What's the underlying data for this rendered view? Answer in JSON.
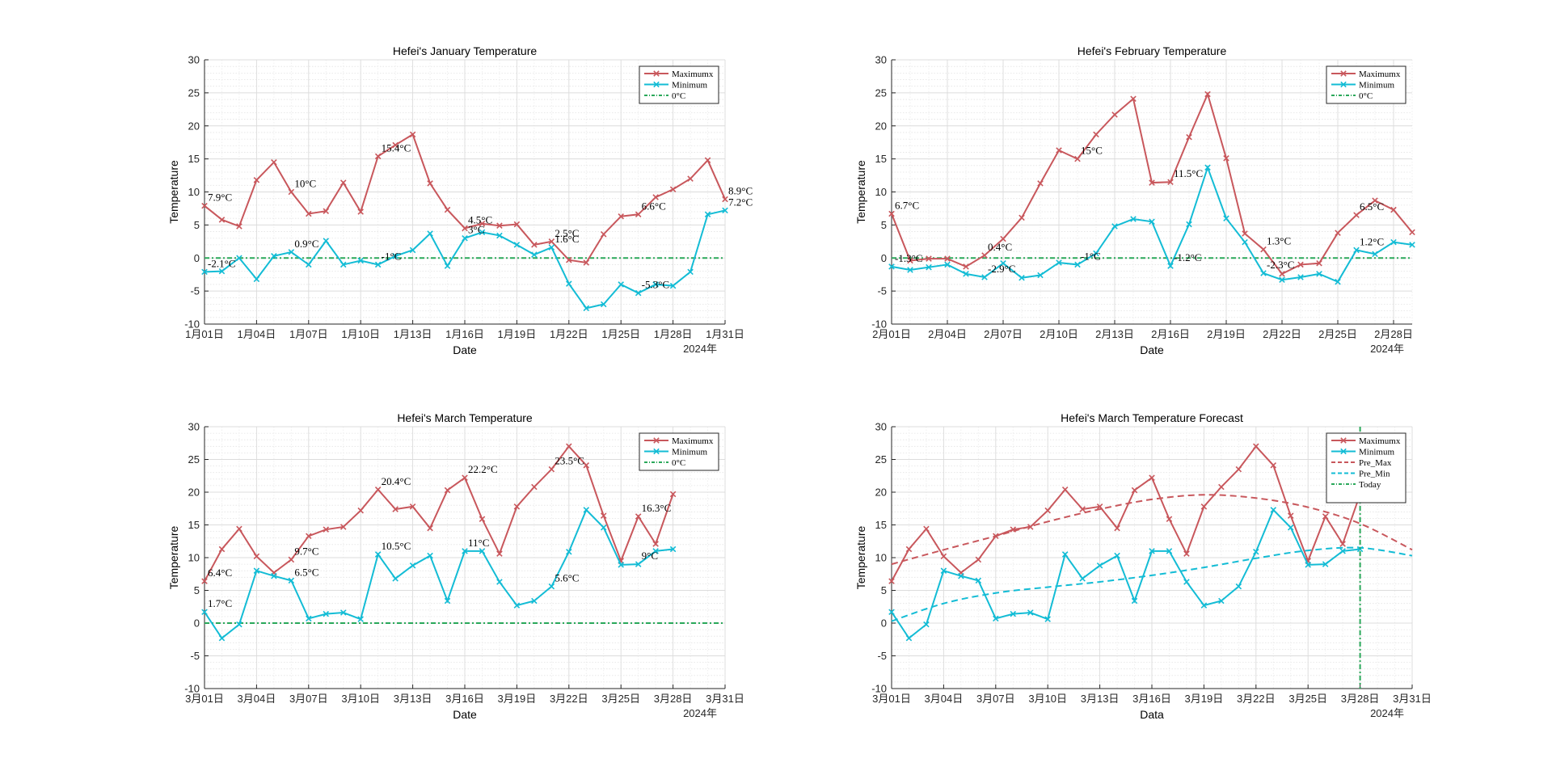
{
  "colors": {
    "max": "#c8575c",
    "min": "#13bcd5",
    "zero": "#2aa85a",
    "today": "#2aa85a"
  },
  "chart_data": [
    {
      "type": "line",
      "title": "Hefei's January Temperature",
      "xlabel": "Date",
      "ylabel": "Temperature",
      "year_label": "2024年",
      "ylim": [
        -10,
        30
      ],
      "yticks": [
        "-10",
        "-5",
        "0",
        "5",
        "10",
        "15",
        "20",
        "25",
        "30"
      ],
      "xlim": [
        1,
        31
      ],
      "xticks": [
        {
          "x": 1,
          "label": "1月01日"
        },
        {
          "x": 4,
          "label": "1月04日"
        },
        {
          "x": 7,
          "label": "1月07日"
        },
        {
          "x": 10,
          "label": "1月10日"
        },
        {
          "x": 13,
          "label": "1月13日"
        },
        {
          "x": 16,
          "label": "1月16日"
        },
        {
          "x": 19,
          "label": "1月19日"
        },
        {
          "x": 22,
          "label": "1月22日"
        },
        {
          "x": 25,
          "label": "1月25日"
        },
        {
          "x": 28,
          "label": "1月28日"
        },
        {
          "x": 31,
          "label": "1月31日"
        }
      ],
      "grid": true,
      "legend_position": "top-right",
      "legend": [
        "Maximumx",
        "Minimum",
        "0°C"
      ],
      "series": [
        {
          "name": "Maximumx",
          "x": [
            1,
            2,
            3,
            4,
            5,
            6,
            7,
            8,
            9,
            10,
            11,
            12,
            13,
            14,
            15,
            16,
            17,
            18,
            19,
            20,
            21,
            22,
            23,
            24,
            25,
            26,
            27,
            28,
            29,
            30,
            31
          ],
          "values": [
            7.9,
            5.8,
            4.8,
            11.8,
            14.5,
            10,
            6.7,
            7.1,
            11.4,
            7,
            15.4,
            17.1,
            18.7,
            11.3,
            7.3,
            4.5,
            5.2,
            4.9,
            5.1,
            2,
            2.5,
            -0.3,
            -0.7,
            3.6,
            6.3,
            6.6,
            9.2,
            10.4,
            12,
            14.8,
            8.9
          ]
        },
        {
          "name": "Minimum",
          "x": [
            1,
            2,
            3,
            4,
            5,
            6,
            7,
            8,
            9,
            10,
            11,
            12,
            13,
            14,
            15,
            16,
            17,
            18,
            19,
            20,
            21,
            22,
            23,
            24,
            25,
            26,
            27,
            28,
            29,
            30,
            31
          ],
          "values": [
            -2.1,
            -2,
            0,
            -3.2,
            0.3,
            0.9,
            -1,
            2.6,
            -1,
            -0.4,
            -1,
            0.3,
            1.2,
            3.7,
            -1.2,
            3,
            3.9,
            3.4,
            2,
            0.5,
            1.6,
            -3.9,
            -7.6,
            -7,
            -4,
            -5.3,
            -4,
            -4.2,
            -2.1,
            6.6,
            7.2
          ]
        }
      ],
      "annotations": [
        {
          "x": 1,
          "y": 7.9,
          "text": "7.9°C"
        },
        {
          "x": 6,
          "y": 10,
          "text": "10°C"
        },
        {
          "x": 11,
          "y": 15.4,
          "text": "15.4°C"
        },
        {
          "x": 16,
          "y": 4.5,
          "text": "4.5°C"
        },
        {
          "x": 21,
          "y": 2.5,
          "text": "2.5°C"
        },
        {
          "x": 26,
          "y": 6.6,
          "text": "6.6°C"
        },
        {
          "x": 31,
          "y": 8.9,
          "text": "8.9°C"
        },
        {
          "x": 1,
          "y": -2.1,
          "text": "-2.1°C"
        },
        {
          "x": 6,
          "y": 0.9,
          "text": "0.9°C"
        },
        {
          "x": 11,
          "y": -1,
          "text": "-1°C"
        },
        {
          "x": 16,
          "y": 3,
          "text": "3°C"
        },
        {
          "x": 21,
          "y": 1.6,
          "text": "1.6°C"
        },
        {
          "x": 26,
          "y": -5.3,
          "text": "-5.3°C"
        },
        {
          "x": 31,
          "y": 7.2,
          "text": "7.2°C"
        }
      ]
    },
    {
      "type": "line",
      "title": "Hefei's February Temperature",
      "xlabel": "Date",
      "ylabel": "Temperature",
      "year_label": "2024年",
      "ylim": [
        -10,
        30
      ],
      "yticks": [
        "-10",
        "-5",
        "0",
        "5",
        "10",
        "15",
        "20",
        "25",
        "30"
      ],
      "xlim": [
        1,
        29
      ],
      "xticks": [
        {
          "x": 1,
          "label": "2月01日"
        },
        {
          "x": 4,
          "label": "2月04日"
        },
        {
          "x": 7,
          "label": "2月07日"
        },
        {
          "x": 10,
          "label": "2月10日"
        },
        {
          "x": 13,
          "label": "2月13日"
        },
        {
          "x": 16,
          "label": "2月16日"
        },
        {
          "x": 19,
          "label": "2月19日"
        },
        {
          "x": 22,
          "label": "2月22日"
        },
        {
          "x": 25,
          "label": "2月25日"
        },
        {
          "x": 28,
          "label": "2月28日"
        }
      ],
      "grid": true,
      "legend_position": "top-right",
      "legend": [
        "Maximumx",
        "Minimum",
        "0°C"
      ],
      "series": [
        {
          "name": "Maximumx",
          "x": [
            1,
            2,
            3,
            4,
            5,
            6,
            7,
            8,
            9,
            10,
            11,
            12,
            13,
            14,
            15,
            16,
            17,
            18,
            19,
            20,
            21,
            22,
            23,
            24,
            25,
            26,
            27,
            28,
            29
          ],
          "values": [
            6.7,
            -0.4,
            -0.1,
            -0.1,
            -1.3,
            0.4,
            2.9,
            6.1,
            11.3,
            16.3,
            15,
            18.7,
            21.7,
            24.1,
            11.4,
            11.5,
            18.3,
            24.8,
            15.1,
            3.7,
            1.3,
            -2.4,
            -1,
            -0.8,
            3.8,
            6.5,
            8.7,
            7.3,
            3.9
          ]
        },
        {
          "name": "Minimum",
          "x": [
            1,
            2,
            3,
            4,
            5,
            6,
            7,
            8,
            9,
            10,
            11,
            12,
            13,
            14,
            15,
            16,
            17,
            18,
            19,
            20,
            21,
            22,
            23,
            24,
            25,
            26,
            27,
            28,
            29
          ],
          "values": [
            -1.3,
            -1.8,
            -1.4,
            -1,
            -2.4,
            -2.9,
            -0.8,
            -3,
            -2.6,
            -0.7,
            -1,
            0.7,
            4.8,
            5.9,
            5.5,
            -1.2,
            5.1,
            13.7,
            6,
            2.4,
            -2.3,
            -3.3,
            -2.9,
            -2.4,
            -3.6,
            1.2,
            0.6,
            2.4,
            2
          ]
        }
      ],
      "annotations": [
        {
          "x": 1,
          "y": 6.7,
          "text": "6.7°C"
        },
        {
          "x": 6,
          "y": 0.4,
          "text": "0.4°C"
        },
        {
          "x": 11,
          "y": 15,
          "text": "15°C"
        },
        {
          "x": 16,
          "y": 11.5,
          "text": "11.5°C"
        },
        {
          "x": 21,
          "y": 1.3,
          "text": "1.3°C"
        },
        {
          "x": 26,
          "y": 6.5,
          "text": "6.5°C"
        },
        {
          "x": 1,
          "y": -1.3,
          "text": "-1.3°C"
        },
        {
          "x": 6,
          "y": -2.9,
          "text": "-2.9°C"
        },
        {
          "x": 11,
          "y": -1,
          "text": "-1°C"
        },
        {
          "x": 16,
          "y": -1.2,
          "text": "-1.2°C"
        },
        {
          "x": 21,
          "y": -2.3,
          "text": "-2.3°C"
        },
        {
          "x": 26,
          "y": 1.2,
          "text": "1.2°C"
        }
      ]
    },
    {
      "type": "line",
      "title": "Hefei's March Temperature",
      "xlabel": "Date",
      "ylabel": "Temperature",
      "year_label": "2024年",
      "ylim": [
        -10,
        30
      ],
      "yticks": [
        "-10",
        "-5",
        "0",
        "5",
        "10",
        "15",
        "20",
        "25",
        "30"
      ],
      "xlim": [
        1,
        31
      ],
      "xticks": [
        {
          "x": 1,
          "label": "3月01日"
        },
        {
          "x": 4,
          "label": "3月04日"
        },
        {
          "x": 7,
          "label": "3月07日"
        },
        {
          "x": 10,
          "label": "3月10日"
        },
        {
          "x": 13,
          "label": "3月13日"
        },
        {
          "x": 16,
          "label": "3月16日"
        },
        {
          "x": 19,
          "label": "3月19日"
        },
        {
          "x": 22,
          "label": "3月22日"
        },
        {
          "x": 25,
          "label": "3月25日"
        },
        {
          "x": 28,
          "label": "3月28日"
        },
        {
          "x": 31,
          "label": "3月31日"
        }
      ],
      "grid": true,
      "legend_position": "top-right",
      "legend": [
        "Maximumx",
        "Minimum",
        "0°C"
      ],
      "series": [
        {
          "name": "Maximumx",
          "x": [
            1,
            2,
            3,
            4,
            5,
            6,
            7,
            8,
            9,
            10,
            11,
            12,
            13,
            14,
            15,
            16,
            17,
            18,
            19,
            20,
            21,
            22,
            23,
            24,
            25,
            26,
            27,
            28
          ],
          "values": [
            6.4,
            11.3,
            14.4,
            10.2,
            7.7,
            9.7,
            13.3,
            14.3,
            14.7,
            17.2,
            20.4,
            17.4,
            17.8,
            14.5,
            20.3,
            22.2,
            15.9,
            10.6,
            17.8,
            20.8,
            23.5,
            27,
            24.1,
            16.4,
            9.5,
            16.3,
            12.1,
            19.7
          ]
        },
        {
          "name": "Minimum",
          "x": [
            1,
            2,
            3,
            4,
            5,
            6,
            7,
            8,
            9,
            10,
            11,
            12,
            13,
            14,
            15,
            16,
            17,
            18,
            19,
            20,
            21,
            22,
            23,
            24,
            25,
            26,
            27,
            28
          ],
          "values": [
            1.7,
            -2.3,
            -0.2,
            8,
            7.2,
            6.5,
            0.7,
            1.4,
            1.6,
            0.6,
            10.5,
            6.8,
            8.8,
            10.3,
            3.4,
            11,
            11,
            6.3,
            2.7,
            3.4,
            5.6,
            10.9,
            17.3,
            14.6,
            8.9,
            9,
            11,
            11.3
          ]
        }
      ],
      "annotations": [
        {
          "x": 1,
          "y": 6.4,
          "text": "6.4°C"
        },
        {
          "x": 6,
          "y": 9.7,
          "text": "9.7°C"
        },
        {
          "x": 11,
          "y": 20.4,
          "text": "20.4°C"
        },
        {
          "x": 16,
          "y": 22.2,
          "text": "22.2°C"
        },
        {
          "x": 21,
          "y": 23.5,
          "text": "23.5°C"
        },
        {
          "x": 26,
          "y": 16.3,
          "text": "16.3°C"
        },
        {
          "x": 1,
          "y": 1.7,
          "text": "1.7°C"
        },
        {
          "x": 6,
          "y": 6.5,
          "text": "6.5°C"
        },
        {
          "x": 11,
          "y": 10.5,
          "text": "10.5°C"
        },
        {
          "x": 16,
          "y": 11,
          "text": "11°C"
        },
        {
          "x": 21,
          "y": 5.6,
          "text": "5.6°C"
        },
        {
          "x": 26,
          "y": 9,
          "text": "9°C"
        }
      ]
    },
    {
      "type": "line",
      "title": "Hefei's March Temperature Forecast",
      "xlabel": "Data",
      "ylabel": "Temperature",
      "year_label": "2024年",
      "ylim": [
        -10,
        30
      ],
      "yticks": [
        "-10",
        "-5",
        "0",
        "5",
        "10",
        "15",
        "20",
        "25",
        "30"
      ],
      "xlim": [
        1,
        31
      ],
      "xticks": [
        {
          "x": 1,
          "label": "3月01日"
        },
        {
          "x": 4,
          "label": "3月04日"
        },
        {
          "x": 7,
          "label": "3月07日"
        },
        {
          "x": 10,
          "label": "3月10日"
        },
        {
          "x": 13,
          "label": "3月13日"
        },
        {
          "x": 16,
          "label": "3月16日"
        },
        {
          "x": 19,
          "label": "3月19日"
        },
        {
          "x": 22,
          "label": "3月22日"
        },
        {
          "x": 25,
          "label": "3月25日"
        },
        {
          "x": 28,
          "label": "3月28日"
        },
        {
          "x": 31,
          "label": "3月31日"
        }
      ],
      "grid": true,
      "legend_position": "top-right",
      "legend": [
        "Maximumx",
        "Minimum",
        "Pre_Max",
        "Pre_Min",
        "Today"
      ],
      "today_x": 28,
      "series": [
        {
          "name": "Maximumx",
          "x": [
            1,
            2,
            3,
            4,
            5,
            6,
            7,
            8,
            9,
            10,
            11,
            12,
            13,
            14,
            15,
            16,
            17,
            18,
            19,
            20,
            21,
            22,
            23,
            24,
            25,
            26,
            27,
            28
          ],
          "values": [
            6.4,
            11.3,
            14.4,
            10.2,
            7.7,
            9.7,
            13.3,
            14.3,
            14.7,
            17.2,
            20.4,
            17.4,
            17.8,
            14.5,
            20.3,
            22.2,
            15.9,
            10.6,
            17.8,
            20.8,
            23.5,
            27,
            24.1,
            16.4,
            9.5,
            16.3,
            12.1,
            19.7
          ]
        },
        {
          "name": "Minimum",
          "x": [
            1,
            2,
            3,
            4,
            5,
            6,
            7,
            8,
            9,
            10,
            11,
            12,
            13,
            14,
            15,
            16,
            17,
            18,
            19,
            20,
            21,
            22,
            23,
            24,
            25,
            26,
            27,
            28
          ],
          "values": [
            1.7,
            -2.3,
            -0.2,
            8,
            7.2,
            6.5,
            0.7,
            1.4,
            1.6,
            0.6,
            10.5,
            6.8,
            8.8,
            10.3,
            3.4,
            11,
            11,
            6.3,
            2.7,
            3.4,
            5.6,
            10.9,
            17.3,
            14.6,
            8.9,
            9,
            11,
            11.3
          ]
        },
        {
          "name": "Pre_Max",
          "x": [
            1,
            4,
            7,
            10,
            13,
            16,
            19,
            22,
            25,
            28,
            31
          ],
          "values": [
            9,
            11.2,
            13.3,
            15.5,
            17.4,
            18.9,
            19.6,
            19.1,
            17.7,
            15.2,
            11.2
          ]
        },
        {
          "name": "Pre_Min",
          "x": [
            1,
            4,
            7,
            10,
            13,
            16,
            19,
            22,
            25,
            28,
            31
          ],
          "values": [
            0.3,
            3,
            4.6,
            5.5,
            6.3,
            7.3,
            8.5,
            9.9,
            11.1,
            11.5,
            10.3
          ]
        }
      ]
    }
  ]
}
